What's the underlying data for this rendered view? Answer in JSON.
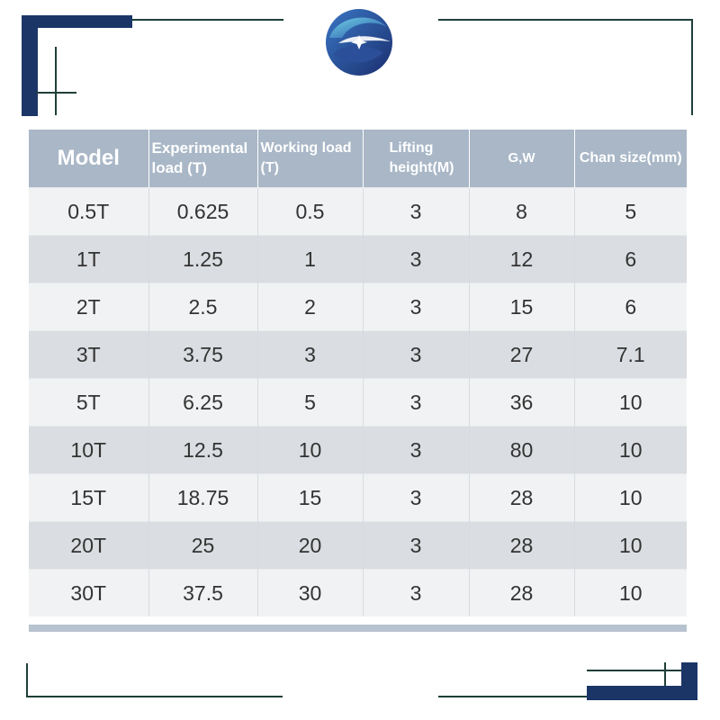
{
  "table": {
    "headers": {
      "model": "Model",
      "experimental_load": "Experimental load (T)",
      "working_load": "Working load (T)",
      "lifting_height": "Lifting height(M)",
      "gw": "G,W",
      "chain_size": "Chan size(mm)"
    },
    "rows": [
      [
        "0.5T",
        "0.625",
        "0.5",
        "3",
        "8",
        "5"
      ],
      [
        "1T",
        "1.25",
        "1",
        "3",
        "12",
        "6"
      ],
      [
        "2T",
        "2.5",
        "2",
        "3",
        "15",
        "6"
      ],
      [
        "3T",
        "3.75",
        "3",
        "3",
        "27",
        "7.1"
      ],
      [
        "5T",
        "6.25",
        "5",
        "3",
        "36",
        "10"
      ],
      [
        "10T",
        "12.5",
        "10",
        "3",
        "80",
        "10"
      ],
      [
        "15T",
        "18.75",
        "15",
        "3",
        "28",
        "10"
      ],
      [
        "20T",
        "25",
        "20",
        "3",
        "28",
        "10"
      ],
      [
        "30T",
        "37.5",
        "30",
        "3",
        "28",
        "10"
      ]
    ]
  },
  "colors": {
    "frame_navy": "#1b3566",
    "frame_line": "#1f3f38",
    "header_bg": "#a9b7c7",
    "row_light": "#f1f2f3",
    "row_dark": "#dadde1"
  },
  "logo": {
    "icon": "swirl-star-logo-icon"
  }
}
